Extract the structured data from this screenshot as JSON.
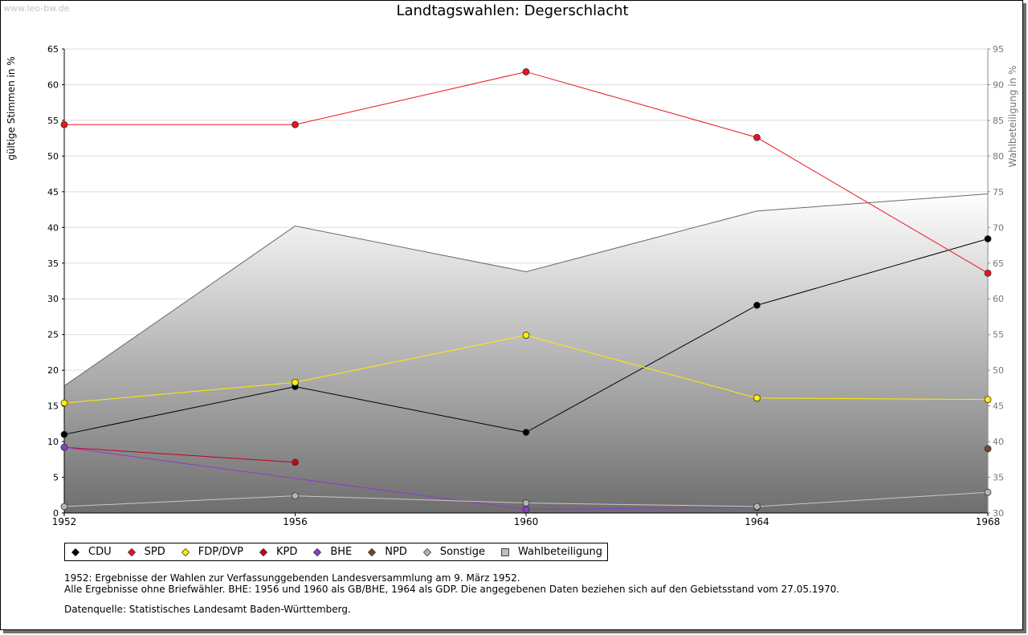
{
  "watermark": "www.leo-bw.de",
  "chart_data": {
    "type": "line",
    "title": "Landtagswahlen: Degerschlacht",
    "ylabel": "gültige Stimmen in %",
    "y2label": "Wahlbeteiligung in %",
    "xlabel": "",
    "x": [
      1952,
      1956,
      1960,
      1964,
      1968
    ],
    "ylim": [
      0,
      65
    ],
    "y2lim": [
      30,
      95
    ],
    "yticks": [
      0,
      5,
      10,
      15,
      20,
      25,
      30,
      35,
      40,
      45,
      50,
      55,
      60,
      65
    ],
    "y2ticks": [
      30,
      35,
      40,
      45,
      50,
      55,
      60,
      65,
      70,
      75,
      80,
      85,
      90,
      95
    ],
    "grid": true,
    "legend_position": "bottom",
    "series": [
      {
        "name": "CDU",
        "color": "#000000",
        "values": [
          11.0,
          17.7,
          11.3,
          29.1,
          38.4
        ]
      },
      {
        "name": "SPD",
        "color": "#e8141e",
        "values": [
          54.4,
          54.4,
          61.8,
          52.6,
          33.6
        ]
      },
      {
        "name": "FDP/DVP",
        "color": "#ffee00",
        "values": [
          15.4,
          18.3,
          24.9,
          16.1,
          15.9
        ]
      },
      {
        "name": "KPD",
        "color": "#c8001e",
        "values": [
          9.2,
          7.1,
          null,
          null,
          null
        ]
      },
      {
        "name": "BHE",
        "color": "#8c3cc8",
        "values": [
          9.2,
          null,
          0.5,
          0.8,
          null
        ]
      },
      {
        "name": "NPD",
        "color": "#6e4a32",
        "values": [
          null,
          null,
          null,
          null,
          9.0
        ]
      },
      {
        "name": "Sonstige",
        "color": "#b4b4b4",
        "values": [
          0.9,
          2.4,
          1.4,
          0.9,
          2.9
        ]
      }
    ],
    "turnout": {
      "name": "Wahlbeteiligung",
      "values": [
        47.8,
        70.2,
        63.8,
        72.3,
        74.7
      ]
    }
  },
  "notes": [
    "1952: Ergebnisse der Wahlen zur Verfassunggebenden Landesversammlung am 9. März 1952.",
    "Alle Ergebnisse ohne Briefwähler. BHE: 1956 und 1960 als GB/BHE, 1964 als GDP. Die angegebenen Daten beziehen sich auf den Gebietsstand vom 27.05.1970."
  ],
  "source": "Datenquelle: Statistisches Landesamt Baden-Württemberg."
}
